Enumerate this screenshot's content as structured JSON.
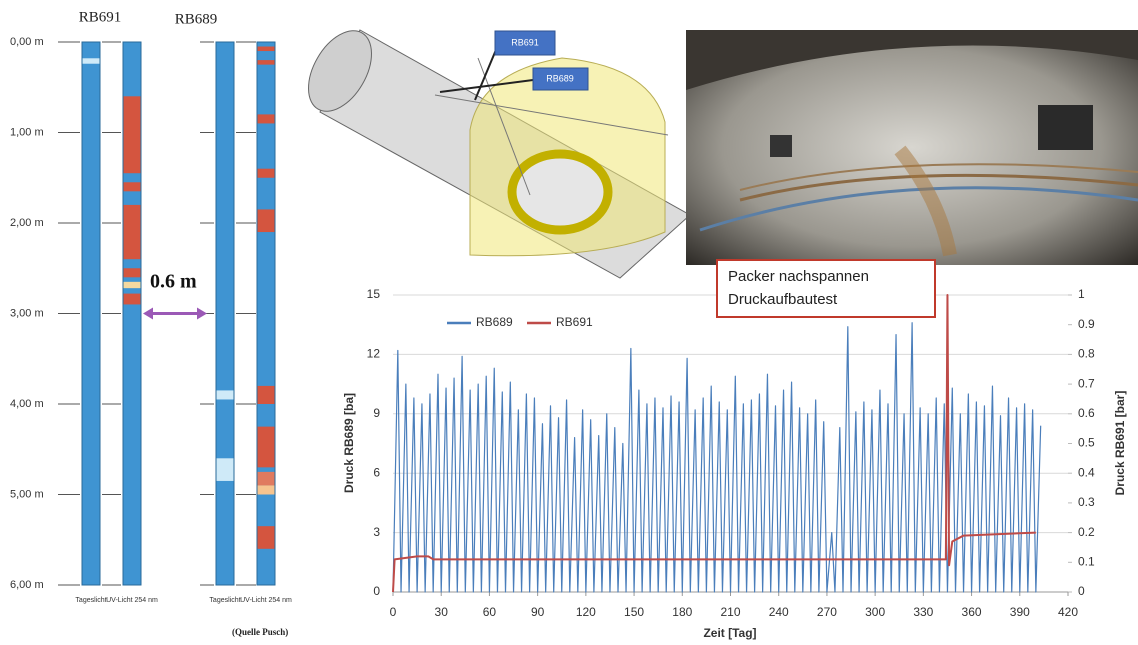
{
  "borehole_log": {
    "ticks": [
      {
        "value": 0,
        "label": "0,00 m"
      },
      {
        "value": 1,
        "label": "1,00 m"
      },
      {
        "value": 2,
        "label": "2,00 m"
      },
      {
        "value": 3,
        "label": "3,00 m"
      },
      {
        "value": 4,
        "label": "4,00 m"
      },
      {
        "value": 5,
        "label": "5,00 m"
      },
      {
        "value": 6,
        "label": "6,00 m"
      }
    ],
    "boreholes": [
      {
        "name": "RB691",
        "columns": [
          {
            "label": "Tageslicht",
            "layers": [
              {
                "from": 0.18,
                "to": 0.24,
                "color": "#cfeaf8"
              }
            ]
          },
          {
            "label": "UV-Licht 254 nm",
            "layers": [
              {
                "from": 0.6,
                "to": 1.45,
                "color": "#d4553f"
              },
              {
                "from": 1.55,
                "to": 1.65,
                "color": "#d4553f"
              },
              {
                "from": 1.8,
                "to": 2.4,
                "color": "#d4553f"
              },
              {
                "from": 2.5,
                "to": 2.6,
                "color": "#d4553f"
              },
              {
                "from": 2.65,
                "to": 2.72,
                "color": "#f4d9a0"
              },
              {
                "from": 2.78,
                "to": 2.9,
                "color": "#d4553f"
              }
            ]
          }
        ]
      },
      {
        "name": "RB689",
        "columns": [
          {
            "label": "Tageslicht",
            "layers": [
              {
                "from": 3.85,
                "to": 3.95,
                "color": "#cfeaf8"
              },
              {
                "from": 4.6,
                "to": 4.85,
                "color": "#cfeaf8"
              }
            ]
          },
          {
            "label": "UV-Licht 254 nm",
            "layers": [
              {
                "from": 0.05,
                "to": 0.1,
                "color": "#d4553f"
              },
              {
                "from": 0.2,
                "to": 0.25,
                "color": "#d4553f"
              },
              {
                "from": 0.8,
                "to": 0.9,
                "color": "#d4553f"
              },
              {
                "from": 1.4,
                "to": 1.5,
                "color": "#d4553f"
              },
              {
                "from": 1.85,
                "to": 2.1,
                "color": "#d4553f"
              },
              {
                "from": 3.8,
                "to": 4.0,
                "color": "#d4553f"
              },
              {
                "from": 4.25,
                "to": 4.7,
                "color": "#d4553f"
              },
              {
                "from": 4.75,
                "to": 4.9,
                "color": "#e07a5f"
              },
              {
                "from": 4.9,
                "to": 5.0,
                "color": "#f6c48f"
              },
              {
                "from": 5.35,
                "to": 5.6,
                "color": "#d4553f"
              }
            ]
          }
        ]
      }
    ],
    "offset_label": "0.6 m",
    "source": "(Quelle Pusch)"
  },
  "diagram": {
    "labels": [
      "RB691",
      "RB689"
    ]
  },
  "chart_data": {
    "type": "line",
    "annotations": [
      "Packer nachspannen",
      "Druckaufbautest"
    ],
    "x_label": "Zeit [Tag]",
    "y_label": "Druck RB689 [ba]",
    "y2_label": "Druck RB691 [bar]",
    "xlim": [
      0,
      420
    ],
    "xticks": [
      0,
      30,
      60,
      90,
      120,
      150,
      180,
      210,
      240,
      270,
      300,
      330,
      360,
      390,
      420
    ],
    "ylim": [
      0,
      15
    ],
    "yticks": [
      0,
      3,
      6,
      9,
      12,
      15
    ],
    "y2lim": [
      0,
      1
    ],
    "y2ticks": [
      0,
      0.1,
      0.2,
      0.3,
      0.4,
      0.5,
      0.6,
      0.7,
      0.8,
      0.9,
      1
    ],
    "grid": true,
    "legend": "top-left",
    "series": [
      {
        "name": "RB689",
        "color": "#4a7ebb",
        "x": [
          0,
          3,
          5,
          8,
          10,
          13,
          15,
          18,
          20,
          23,
          25,
          28,
          30,
          33,
          35,
          38,
          40,
          43,
          45,
          48,
          50,
          53,
          55,
          58,
          60,
          63,
          65,
          68,
          70,
          73,
          75,
          78,
          80,
          83,
          85,
          88,
          90,
          93,
          95,
          98,
          100,
          103,
          105,
          108,
          110,
          113,
          115,
          118,
          120,
          123,
          125,
          128,
          130,
          133,
          135,
          138,
          140,
          143,
          145,
          148,
          150,
          153,
          155,
          158,
          160,
          163,
          165,
          168,
          170,
          173,
          175,
          178,
          180,
          183,
          185,
          188,
          190,
          193,
          195,
          198,
          200,
          203,
          205,
          208,
          210,
          213,
          215,
          218,
          220,
          223,
          225,
          228,
          230,
          233,
          235,
          238,
          240,
          243,
          245,
          248,
          250,
          253,
          255,
          258,
          260,
          263,
          265,
          268,
          270,
          273,
          275,
          278,
          280,
          283,
          285,
          288,
          290,
          293,
          295,
          298,
          300,
          303,
          305,
          308,
          310,
          313,
          315,
          318,
          320,
          323,
          325,
          328,
          330,
          333,
          335,
          338,
          340,
          343,
          345,
          348,
          350,
          353,
          355,
          358,
          360,
          363,
          365,
          368,
          370,
          373,
          375,
          378,
          380,
          383,
          385,
          388,
          390,
          393,
          395,
          398,
          400,
          403
        ],
        "values": [
          0,
          12.2,
          0,
          10.5,
          0,
          9.8,
          0,
          9.5,
          0,
          10,
          0,
          11,
          0,
          10.3,
          0,
          10.8,
          0,
          11.9,
          0,
          10.2,
          0,
          10.5,
          0,
          10.9,
          0,
          11.3,
          0,
          10.1,
          0,
          10.6,
          0,
          9.2,
          0,
          10,
          0,
          9.8,
          0,
          8.5,
          0,
          9.4,
          0,
          8.8,
          0,
          9.7,
          0,
          7.8,
          0,
          9.2,
          0,
          8.7,
          0,
          7.9,
          0,
          9,
          0,
          8.3,
          0,
          7.5,
          0,
          12.3,
          0,
          10.2,
          0,
          9.5,
          0,
          9.8,
          0,
          9.3,
          0,
          9.9,
          0,
          9.6,
          0,
          11.8,
          0,
          9.2,
          0,
          9.8,
          0,
          10.4,
          0,
          9.6,
          0,
          9.2,
          0,
          10.9,
          0,
          9.5,
          0,
          9.7,
          0,
          10,
          0,
          11,
          0,
          9.4,
          0,
          10.2,
          0,
          10.6,
          0,
          9.3,
          0,
          9,
          0,
          9.7,
          0,
          8.6,
          0,
          3,
          0,
          8.3,
          0,
          13.4,
          0,
          9.1,
          0,
          9.6,
          0,
          9.2,
          0,
          10.2,
          0,
          9.5,
          0,
          13,
          0,
          9,
          0,
          13.6,
          0,
          9.3,
          0,
          9,
          0,
          9.8,
          0,
          9.5,
          0,
          10.3,
          0,
          9,
          0,
          10,
          0,
          9.6,
          0,
          9.4,
          0,
          10.4,
          0,
          8.9,
          0,
          9.8,
          0,
          9.3,
          0,
          9.5,
          0,
          9.2,
          0,
          8.4
        ]
      },
      {
        "name": "RB691",
        "color": "#be4b48",
        "axis": "y2",
        "x": [
          0,
          1,
          15,
          22,
          25,
          344,
          345,
          346,
          348,
          355,
          400
        ],
        "values": [
          0,
          0.11,
          0.12,
          0.12,
          0.11,
          0.11,
          1,
          0.09,
          0.17,
          0.19,
          0.2
        ]
      }
    ]
  }
}
